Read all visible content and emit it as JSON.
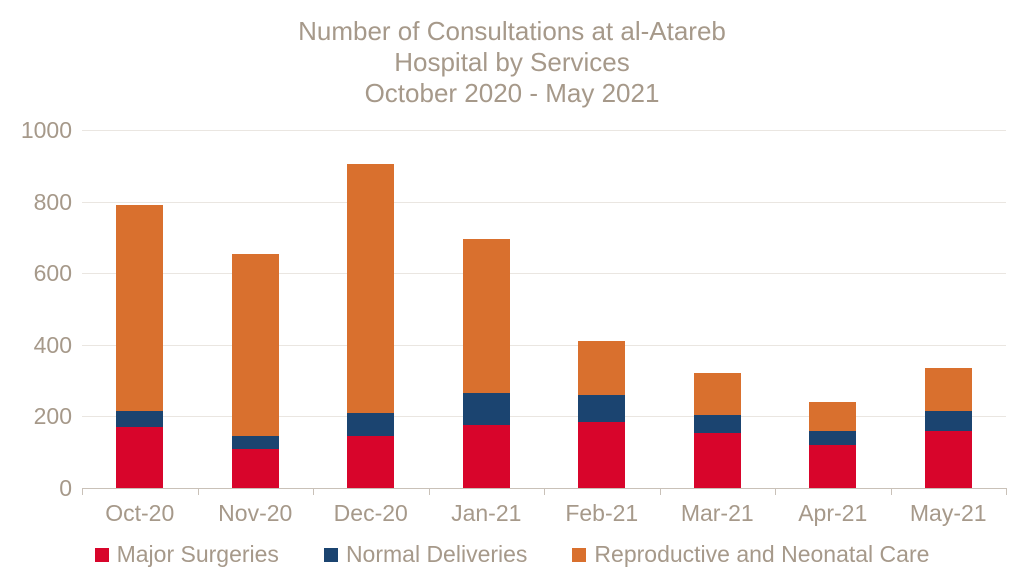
{
  "colors": {
    "background": "#FFFFFF",
    "text": "#A6998A",
    "gridline": "#EAE6E1",
    "axis_line": "#C9C1B8"
  },
  "chart_data": {
    "type": "bar",
    "stacked": true,
    "title": "Number of Consultations at al-Atareb Hospital by Services October 2020 - May 2021",
    "title_lines": [
      "Number of Consultations at al-Atareb",
      "Hospital by Services",
      "October 2020 - May 2021"
    ],
    "xlabel": "",
    "ylabel": "",
    "categories": [
      "Oct-20",
      "Nov-20",
      "Dec-20",
      "Jan-21",
      "Feb-21",
      "Mar-21",
      "Apr-21",
      "May-21"
    ],
    "series": [
      {
        "name": "Major Surgeries",
        "color": "#D8052B",
        "values": [
          170,
          110,
          145,
          175,
          185,
          155,
          120,
          160
        ]
      },
      {
        "name": "Normal Deliveries",
        "color": "#1B4470",
        "values": [
          45,
          35,
          65,
          90,
          75,
          50,
          40,
          55
        ]
      },
      {
        "name": "Reproductive and Neonatal Care",
        "color": "#D9702E",
        "values": [
          575,
          510,
          695,
          430,
          150,
          115,
          80,
          120
        ]
      }
    ],
    "totals": [
      790,
      655,
      905,
      695,
      410,
      320,
      240,
      335
    ],
    "ylim": [
      0,
      1000
    ],
    "yticks": [
      0,
      200,
      400,
      600,
      800,
      1000
    ],
    "grid": true,
    "legend_position": "bottom"
  }
}
